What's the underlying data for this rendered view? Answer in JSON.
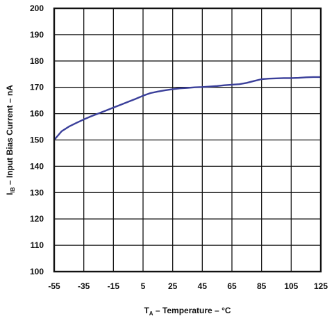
{
  "chart_data": {
    "type": "line",
    "title": "",
    "xlabel": "TA – Temperature – °C",
    "xlabel_main": "T",
    "xlabel_sub": "A",
    "xlabel_rest": " – Temperature – °C",
    "ylabel": "IIB – Input Bias Current – nA",
    "ylabel_main": "I",
    "ylabel_sub": "IB",
    "ylabel_rest": " – Input Bias Current – nA",
    "xlim": [
      -55,
      125
    ],
    "ylim": [
      100,
      200
    ],
    "x_ticks": [
      -55,
      -35,
      -15,
      5,
      25,
      45,
      65,
      85,
      105,
      125
    ],
    "x_tick_labels": [
      "-55",
      "-35",
      "-15",
      "5",
      "25",
      "45",
      "65",
      "85",
      "105",
      "125"
    ],
    "y_ticks": [
      100,
      110,
      120,
      130,
      140,
      150,
      160,
      170,
      180,
      190,
      200
    ],
    "y_tick_labels": [
      "100",
      "110",
      "120",
      "130",
      "140",
      "150",
      "160",
      "170",
      "180",
      "190",
      "200"
    ],
    "grid": true,
    "legend": "none",
    "series": [
      {
        "color": "#3a3f9a",
        "x": [
          -55,
          -50,
          -45,
          -40,
          -35,
          -30,
          -25,
          -20,
          -15,
          -10,
          -5,
          0,
          5,
          10,
          15,
          20,
          25,
          30,
          35,
          40,
          45,
          50,
          55,
          60,
          65,
          70,
          75,
          80,
          85,
          90,
          95,
          100,
          105,
          110,
          115,
          120,
          125
        ],
        "y": [
          150,
          153.3,
          155.1,
          156.5,
          157.8,
          159,
          160.1,
          161.2,
          162.3,
          163.4,
          164.5,
          165.6,
          166.8,
          167.8,
          168.4,
          168.9,
          169.3,
          169.6,
          169.8,
          170,
          170.1,
          170.3,
          170.5,
          170.8,
          171,
          171.2,
          171.7,
          172.4,
          173.1,
          173.3,
          173.4,
          173.5,
          173.5,
          173.6,
          173.8,
          173.9,
          173.9
        ]
      }
    ]
  }
}
